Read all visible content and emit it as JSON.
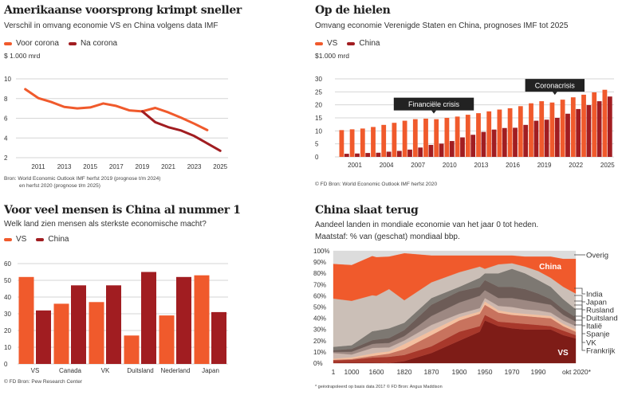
{
  "colors": {
    "orange": "#f05a2c",
    "darkred": "#a11d21",
    "grid": "#d6d6d6",
    "callout": "#222222"
  },
  "chart_data": [
    {
      "type": "line",
      "title": "Amerikaanse voorsprong krimpt sneller",
      "subtitle": "Verschil in omvang economie VS en China volgens data IMF",
      "ylabel": "$ 1.000 mrd",
      "ylim": [
        2,
        10
      ],
      "yticks": [
        "2",
        "4",
        "6",
        "8",
        "10"
      ],
      "xticks": [
        "2011",
        "2013",
        "2015",
        "2017",
        "2019",
        "2021",
        "2023",
        "2025"
      ],
      "grid": true,
      "legend": "top-left",
      "series": [
        {
          "name": "Voor corona",
          "color": "#f05a2c",
          "x": [
            2010,
            2011,
            2012,
            2013,
            2014,
            2015,
            2016,
            2017,
            2018,
            2019,
            2020,
            2021,
            2022,
            2023,
            2024
          ],
          "y": [
            8.95,
            8.05,
            7.65,
            7.15,
            7.0,
            7.1,
            7.5,
            7.25,
            6.8,
            6.7,
            7.05,
            6.6,
            6.05,
            5.45,
            4.8
          ]
        },
        {
          "name": "Na corona",
          "color": "#a11d21",
          "x": [
            2019,
            2020,
            2021,
            2022,
            2023,
            2024,
            2025
          ],
          "y": [
            6.7,
            5.6,
            5.1,
            4.75,
            4.2,
            3.45,
            2.7
          ]
        }
      ],
      "source": [
        "Bron: World Economic Outlook IMF herfst 2019 (prognose t/m 2024)",
        "en herfst 2020 (prognose t/m 2025)"
      ]
    },
    {
      "type": "bar",
      "title": "Op de hielen",
      "subtitle": "Omvang economie Verenigde Staten en China, prognoses IMF tot 2025",
      "ylabel": "$1.000 mrd",
      "ylim": [
        0,
        30
      ],
      "yticks": [
        "0",
        "5",
        "10",
        "15",
        "20",
        "25",
        "30"
      ],
      "xticks": [
        "2001",
        "2004",
        "2007",
        "2010",
        "2013",
        "2016",
        "2019",
        "2022",
        "2025"
      ],
      "grid": true,
      "legend": "top-left",
      "categories": [
        2000,
        2001,
        2002,
        2003,
        2004,
        2005,
        2006,
        2007,
        2008,
        2009,
        2010,
        2011,
        2012,
        2013,
        2014,
        2015,
        2016,
        2017,
        2018,
        2019,
        2020,
        2021,
        2022,
        2023,
        2024,
        2025
      ],
      "series": [
        {
          "name": "VS",
          "color": "#f05a2c",
          "values": [
            10.3,
            10.6,
            10.9,
            11.5,
            12.3,
            13.1,
            13.9,
            14.5,
            14.7,
            14.5,
            15.0,
            15.5,
            16.2,
            16.8,
            17.5,
            18.2,
            18.7,
            19.5,
            20.6,
            21.4,
            20.9,
            22.0,
            22.9,
            23.9,
            24.8,
            25.8
          ]
        },
        {
          "name": "China",
          "color": "#a11d21",
          "values": [
            1.2,
            1.3,
            1.5,
            1.6,
            2.0,
            2.3,
            2.8,
            3.6,
            4.6,
            5.1,
            6.1,
            7.5,
            8.5,
            9.6,
            10.5,
            11.1,
            11.2,
            12.3,
            13.9,
            14.3,
            15.0,
            16.6,
            18.4,
            19.9,
            21.4,
            23.2
          ]
        }
      ],
      "annotations": [
        {
          "text": "Financiële crisis",
          "year": 2008.5,
          "value": 14.8
        },
        {
          "text": "Coronacrisis",
          "year": 2020,
          "value": 22
        }
      ],
      "source": "© FD  Bron: World Economic Outlook IMF herfst 2020"
    },
    {
      "type": "bar",
      "title": "Voor veel mensen is China al nummer 1",
      "subtitle": "Welk land zien mensen als sterkste economische macht?",
      "ylim": [
        0,
        60
      ],
      "yticks": [
        "0",
        "10",
        "20",
        "30",
        "40",
        "50",
        "60"
      ],
      "grid": true,
      "legend": "top-left",
      "categories": [
        "VS",
        "Canada",
        "VK",
        "Duitsland",
        "Nederland",
        "Japan"
      ],
      "series": [
        {
          "name": "VS",
          "color": "#f05a2c",
          "values": [
            52,
            36,
            37,
            17,
            29,
            53
          ]
        },
        {
          "name": "China",
          "color": "#a11d21",
          "values": [
            32,
            47,
            47,
            55,
            52,
            31
          ]
        }
      ],
      "source": "© FD  Bron: Pew Research Center"
    },
    {
      "type": "area",
      "stacked": true,
      "title": "China slaat terug",
      "subtitle": [
        "Aandeel landen in mondiale economie van het jaar 0 tot heden.",
        "Maatstaf: % van (geschat) mondiaal bbp."
      ],
      "ylim": [
        0,
        100
      ],
      "yticks": [
        "0%",
        "10%",
        "20%",
        "30%",
        "40%",
        "50%",
        "60%",
        "70%",
        "80%",
        "90%",
        "100%"
      ],
      "xticks": [
        {
          "label": "1",
          "year": 1
        },
        {
          "label": "1000",
          "year": 1000
        },
        {
          "label": "1600",
          "year": 1600
        },
        {
          "label": "1820",
          "year": 1820
        },
        {
          "label": "1870",
          "year": 1870
        },
        {
          "label": "1900",
          "year": 1900
        },
        {
          "label": "1950",
          "year": 1950
        },
        {
          "label": "1970",
          "year": 1970
        },
        {
          "label": "1990",
          "year": 1990
        },
        {
          "label": "okt 2020*",
          "year": 2020
        }
      ],
      "x": [
        1,
        1000,
        1500,
        1600,
        1700,
        1820,
        1870,
        1900,
        1940,
        1950,
        1960,
        1970,
        1980,
        1990,
        2000,
        2010,
        2020
      ],
      "series": [
        {
          "name": "VS",
          "color": "#7e1c17",
          "values": [
            0.3,
            0.5,
            0.5,
            0.4,
            0.1,
            1.8,
            9,
            20,
            28,
            38,
            33,
            31,
            30,
            30,
            30,
            25,
            22
          ]
        },
        {
          "name": "Frankrijk",
          "color": "#a8382b",
          "values": [
            2.3,
            2.5,
            4.5,
            4.7,
            5.6,
            5.5,
            6,
            8,
            5,
            5,
            4,
            5,
            5,
            4,
            3,
            4,
            3
          ]
        },
        {
          "name": "VK",
          "color": "#c8735e",
          "values": [
            0.4,
            0.7,
            1.5,
            1.8,
            2.8,
            5.2,
            10,
            10,
            11,
            9,
            8,
            7,
            7,
            7,
            7,
            4,
            3
          ]
        },
        {
          "name": "Spanje",
          "color": "#f3bf9f",
          "values": [
            1.0,
            1.5,
            2,
            2.3,
            2,
            4.5,
            4,
            3,
            2,
            3,
            2,
            2,
            2,
            2,
            2,
            2,
            2
          ]
        },
        {
          "name": "Italië",
          "color": "#cdb7ae",
          "values": [
            5.0,
            2.5,
            5,
            4.5,
            3.5,
            3.2,
            5,
            3,
            3,
            3,
            4,
            5,
            4,
            4,
            3,
            3,
            3
          ]
        },
        {
          "name": "Duitsland",
          "color": "#9d8882",
          "values": [
            1.0,
            2.5,
            3.5,
            3.8,
            4,
            3.9,
            8,
            10,
            11,
            7,
            7,
            8,
            8,
            7,
            7,
            5,
            4
          ]
        },
        {
          "name": "Rusland",
          "color": "#6d5c57",
          "values": [
            1.5,
            2.5,
            3.5,
            3.5,
            4.4,
            5.4,
            10,
            10,
            8,
            9,
            10,
            10,
            10,
            8,
            5,
            5,
            4
          ]
        },
        {
          "name": "Japan",
          "color": "#7d7872",
          "values": [
            3.0,
            3.3,
            8,
            8,
            8.6,
            6.5,
            6,
            4,
            8,
            6,
            12,
            16,
            14,
            12,
            11,
            9,
            7
          ]
        },
        {
          "name": "India",
          "color": "#cbbfb7",
          "values": [
            43,
            39.5,
            32,
            31,
            35,
            20,
            14,
            13,
            10,
            4,
            8,
            5,
            6,
            8,
            8,
            11,
            14
          ]
        },
        {
          "name": "China",
          "color": "#f05a2c",
          "values": [
            31,
            32,
            35,
            34.5,
            29,
            42,
            24,
            15,
            10,
            12,
            8,
            7,
            9,
            13,
            19,
            25,
            31
          ]
        },
        {
          "name": "Overig",
          "color": "#dcdcdc",
          "values": [
            11.5,
            12.5,
            4.5,
            5.5,
            5,
            2,
            4,
            4,
            4,
            4,
            4,
            4,
            5,
            5,
            5,
            7,
            7
          ]
        }
      ],
      "series_labels": [
        "Overig",
        "India",
        "Japan",
        "Rusland",
        "Duitsland",
        "Italië",
        "Spanje",
        "VK",
        "Frankrijk"
      ],
      "inner_labels": {
        "china": "China",
        "vs": "VS"
      },
      "source": "* geëxtrapoleerd op basis data 2017 © FD Bron: Angus Maddison"
    }
  ]
}
